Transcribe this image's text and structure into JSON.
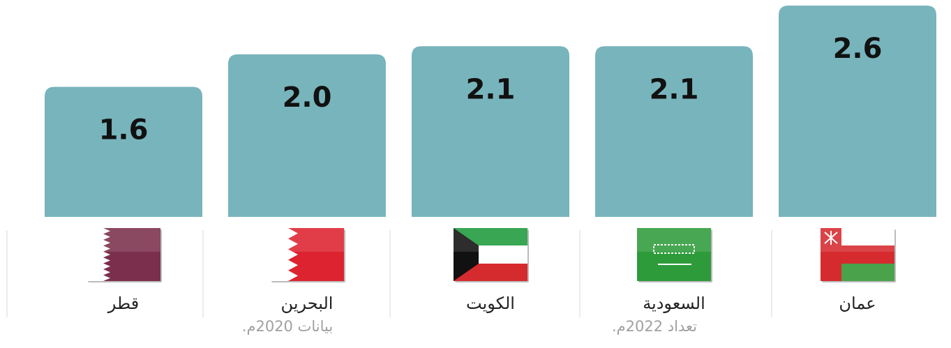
{
  "chart_data": {
    "type": "bar",
    "categories": [
      "قطر",
      "البحرين",
      "الكويت",
      "السعودية",
      "عمان"
    ],
    "values": [
      1.6,
      2.0,
      2.1,
      2.1,
      2.6
    ],
    "value_labels": [
      "1.6",
      "2.0",
      "2.1",
      "2.1",
      "2.6"
    ],
    "notes": [
      null,
      "بيانات 2020م.",
      null,
      "تعداد 2022م.",
      null
    ],
    "color": "#78b4bc"
  }
}
